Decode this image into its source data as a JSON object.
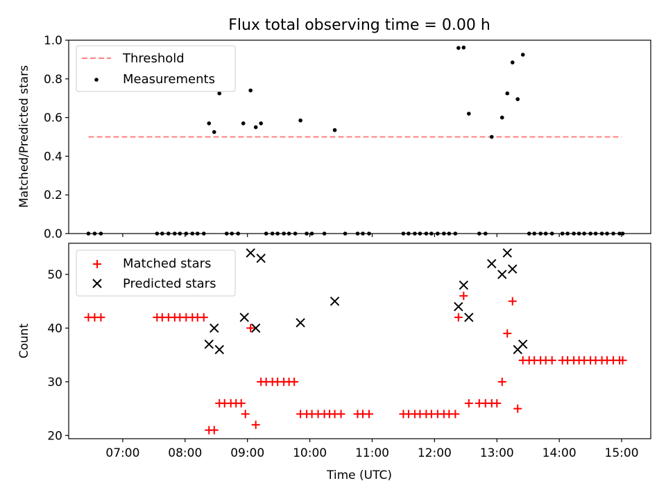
{
  "figure": {
    "title": "Flux total observing time = 0.00 h"
  },
  "chart_data": [
    {
      "type": "scatter",
      "title": "Flux total observing time = 0.00 h",
      "xlabel": "",
      "ylabel": "Matched/Predicted stars",
      "xlim": [
        "06:08",
        "15:28"
      ],
      "ylim": [
        0,
        1.0
      ],
      "yticks": [
        0.0,
        0.2,
        0.4,
        0.6,
        0.8,
        1.0
      ],
      "ytick_labels": [
        "0.0",
        "0.2",
        "0.4",
        "0.6",
        "0.8",
        "1.0"
      ],
      "xticks": [
        "07:00",
        "08:00",
        "09:00",
        "10:00",
        "11:00",
        "12:00",
        "13:00",
        "14:00",
        "15:00"
      ],
      "xtick_labels_shown": false,
      "grid": false,
      "legend_position": "top-left",
      "threshold": {
        "name": "Threshold",
        "value": 0.5,
        "x_range": [
          "06:27",
          "15:00"
        ],
        "color": "#ff7f7f",
        "style": "dashed"
      },
      "series": [
        {
          "name": "Measurements",
          "color": "#000000",
          "marker": "dot",
          "points": [
            [
              "06:27",
              0
            ],
            [
              "06:33",
              0
            ],
            [
              "06:39",
              0
            ],
            [
              "07:33",
              0
            ],
            [
              "07:38",
              0
            ],
            [
              "07:44",
              0
            ],
            [
              "07:50",
              0
            ],
            [
              "07:55",
              0
            ],
            [
              "08:01",
              0
            ],
            [
              "08:07",
              0
            ],
            [
              "08:12",
              0
            ],
            [
              "08:18",
              0
            ],
            [
              "08:23",
              0.57
            ],
            [
              "08:28",
              0.525
            ],
            [
              "08:33",
              0.725
            ],
            [
              "08:40",
              0
            ],
            [
              "08:45",
              0
            ],
            [
              "08:51",
              0
            ],
            [
              "08:56",
              0.57
            ],
            [
              "09:03",
              0.74
            ],
            [
              "09:08",
              0.55
            ],
            [
              "09:13",
              0.57
            ],
            [
              "09:18",
              0
            ],
            [
              "09:24",
              0
            ],
            [
              "09:29",
              0
            ],
            [
              "09:35",
              0
            ],
            [
              "09:40",
              0
            ],
            [
              "09:46",
              0
            ],
            [
              "09:51",
              0.585
            ],
            [
              "09:57",
              0
            ],
            [
              "10:02",
              0
            ],
            [
              "10:14",
              0
            ],
            [
              "10:24",
              0.535
            ],
            [
              "10:34",
              0
            ],
            [
              "10:46",
              0
            ],
            [
              "10:51",
              0
            ],
            [
              "10:57",
              0
            ],
            [
              "11:30",
              0
            ],
            [
              "11:35",
              0
            ],
            [
              "11:41",
              0
            ],
            [
              "11:46",
              0
            ],
            [
              "11:52",
              0
            ],
            [
              "11:57",
              0
            ],
            [
              "12:03",
              0
            ],
            [
              "12:09",
              0
            ],
            [
              "12:14",
              0
            ],
            [
              "12:20",
              0
            ],
            [
              "12:23",
              0.96
            ],
            [
              "12:28",
              0.962
            ],
            [
              "12:33",
              0.62
            ],
            [
              "12:43",
              0
            ],
            [
              "12:49",
              0
            ],
            [
              "12:55",
              0.5
            ],
            [
              "13:05",
              0.6
            ],
            [
              "13:10",
              0.725
            ],
            [
              "13:15",
              0.885
            ],
            [
              "13:20",
              0.695
            ],
            [
              "13:25",
              0.925
            ],
            [
              "13:31",
              0
            ],
            [
              "13:36",
              0
            ],
            [
              "13:42",
              0
            ],
            [
              "13:47",
              0
            ],
            [
              "13:53",
              0
            ],
            [
              "14:03",
              0
            ],
            [
              "14:08",
              0
            ],
            [
              "14:14",
              0
            ],
            [
              "14:19",
              0
            ],
            [
              "14:24",
              0
            ],
            [
              "14:30",
              0
            ],
            [
              "14:35",
              0
            ],
            [
              "14:41",
              0
            ],
            [
              "14:46",
              0
            ],
            [
              "14:52",
              0
            ],
            [
              "14:58",
              0
            ],
            [
              "15:01",
              0
            ]
          ]
        }
      ]
    },
    {
      "type": "scatter",
      "title": "",
      "xlabel": "Time (UTC)",
      "ylabel": "Count",
      "xlim": [
        "06:08",
        "15:28"
      ],
      "ylim": [
        19.4,
        55.8
      ],
      "yticks": [
        20,
        30,
        40,
        50
      ],
      "ytick_labels": [
        "20",
        "30",
        "40",
        "50"
      ],
      "xticks": [
        "07:00",
        "08:00",
        "09:00",
        "10:00",
        "11:00",
        "12:00",
        "13:00",
        "14:00",
        "15:00"
      ],
      "xtick_labels": [
        "07:00",
        "08:00",
        "09:00",
        "10:00",
        "11:00",
        "12:00",
        "13:00",
        "14:00",
        "15:00"
      ],
      "grid": false,
      "legend_position": "top-left",
      "series": [
        {
          "name": "Matched stars",
          "color": "#ff0000",
          "marker": "plus",
          "points": [
            [
              "06:27",
              42
            ],
            [
              "06:33",
              42
            ],
            [
              "06:39",
              42
            ],
            [
              "07:33",
              42
            ],
            [
              "07:38",
              42
            ],
            [
              "07:44",
              42
            ],
            [
              "07:50",
              42
            ],
            [
              "07:55",
              42
            ],
            [
              "08:01",
              42
            ],
            [
              "08:07",
              42
            ],
            [
              "08:12",
              42
            ],
            [
              "08:18",
              42
            ],
            [
              "08:23",
              21
            ],
            [
              "08:28",
              21
            ],
            [
              "08:33",
              26
            ],
            [
              "08:38",
              26
            ],
            [
              "08:44",
              26
            ],
            [
              "08:49",
              26
            ],
            [
              "08:54",
              26
            ],
            [
              "08:58",
              24
            ],
            [
              "09:03",
              40
            ],
            [
              "09:08",
              22
            ],
            [
              "09:13",
              30
            ],
            [
              "09:18",
              30
            ],
            [
              "09:24",
              30
            ],
            [
              "09:29",
              30
            ],
            [
              "09:35",
              30
            ],
            [
              "09:40",
              30
            ],
            [
              "09:45",
              30
            ],
            [
              "09:51",
              24
            ],
            [
              "09:57",
              24
            ],
            [
              "10:02",
              24
            ],
            [
              "10:08",
              24
            ],
            [
              "10:14",
              24
            ],
            [
              "10:19",
              24
            ],
            [
              "10:24",
              24
            ],
            [
              "10:30",
              24
            ],
            [
              "10:46",
              24
            ],
            [
              "10:51",
              24
            ],
            [
              "10:57",
              24
            ],
            [
              "11:30",
              24
            ],
            [
              "11:35",
              24
            ],
            [
              "11:41",
              24
            ],
            [
              "11:46",
              24
            ],
            [
              "11:52",
              24
            ],
            [
              "11:57",
              24
            ],
            [
              "12:03",
              24
            ],
            [
              "12:09",
              24
            ],
            [
              "12:14",
              24
            ],
            [
              "12:20",
              24
            ],
            [
              "12:23",
              42
            ],
            [
              "12:28",
              46
            ],
            [
              "12:33",
              26
            ],
            [
              "12:43",
              26
            ],
            [
              "12:49",
              26
            ],
            [
              "12:55",
              26
            ],
            [
              "13:00",
              26
            ],
            [
              "13:05",
              30
            ],
            [
              "13:10",
              39
            ],
            [
              "13:15",
              45
            ],
            [
              "13:20",
              25
            ],
            [
              "13:25",
              34
            ],
            [
              "13:31",
              34
            ],
            [
              "13:36",
              34
            ],
            [
              "13:42",
              34
            ],
            [
              "13:47",
              34
            ],
            [
              "13:53",
              34
            ],
            [
              "14:03",
              34
            ],
            [
              "14:08",
              34
            ],
            [
              "14:14",
              34
            ],
            [
              "14:19",
              34
            ],
            [
              "14:24",
              34
            ],
            [
              "14:30",
              34
            ],
            [
              "14:35",
              34
            ],
            [
              "14:41",
              34
            ],
            [
              "14:46",
              34
            ],
            [
              "14:52",
              34
            ],
            [
              "14:58",
              34
            ],
            [
              "15:01",
              34
            ]
          ]
        },
        {
          "name": "Predicted stars",
          "color": "#000000",
          "marker": "x",
          "points": [
            [
              "08:23",
              37
            ],
            [
              "08:28",
              40
            ],
            [
              "08:33",
              36
            ],
            [
              "08:57",
              42
            ],
            [
              "09:03",
              54
            ],
            [
              "09:08",
              40
            ],
            [
              "09:13",
              53
            ],
            [
              "09:51",
              41
            ],
            [
              "10:24",
              45
            ],
            [
              "12:23",
              44
            ],
            [
              "12:28",
              48
            ],
            [
              "12:33",
              42
            ],
            [
              "12:55",
              52
            ],
            [
              "13:05",
              50
            ],
            [
              "13:10",
              54
            ],
            [
              "13:15",
              51
            ],
            [
              "13:20",
              36
            ],
            [
              "13:25",
              37
            ]
          ]
        }
      ]
    }
  ]
}
